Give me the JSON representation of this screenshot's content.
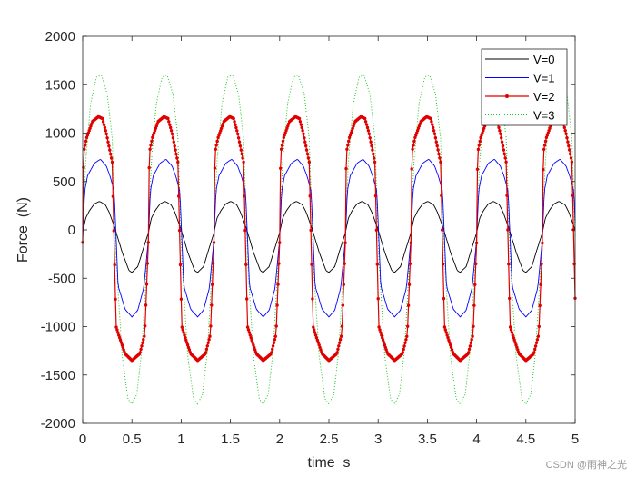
{
  "chart_data": {
    "type": "line",
    "xlabel": "time  s",
    "ylabel": "Force  (N)",
    "xlim": [
      0,
      5
    ],
    "ylim": [
      -2000,
      2000
    ],
    "xticks": [
      "0",
      "0.5",
      "1",
      "1.5",
      "2",
      "2.5",
      "3",
      "3.5",
      "4",
      "4.5",
      "5"
    ],
    "yticks": [
      "2000",
      "1500",
      "1000",
      "500",
      "0",
      "-500",
      "-1000",
      "-1500",
      "-2000"
    ],
    "grid": false,
    "legend_position": "top-right",
    "period_s": 0.6667,
    "series": [
      {
        "name": "V=0",
        "color": "#000000",
        "style": "solid",
        "x": [
          0,
          0.03,
          0.07,
          0.12,
          0.17,
          0.23,
          0.27,
          0.33,
          0.4,
          0.47,
          0.5,
          0.56,
          0.62,
          0.6667
        ],
        "values": [
          -30,
          120,
          200,
          270,
          295,
          260,
          180,
          10,
          -230,
          -420,
          -440,
          -380,
          -180,
          -30
        ]
      },
      {
        "name": "V=1",
        "color": "#0000ff",
        "style": "solid",
        "x": [
          0,
          0.02,
          0.05,
          0.12,
          0.18,
          0.24,
          0.28,
          0.32,
          0.36,
          0.43,
          0.5,
          0.56,
          0.62,
          0.6667
        ],
        "values": [
          -100,
          400,
          560,
          690,
          730,
          660,
          550,
          400,
          -580,
          -820,
          -900,
          -830,
          -600,
          -100
        ]
      },
      {
        "name": "V=2",
        "color": "#e00000",
        "style": "dots",
        "x": [
          0,
          0.01,
          0.04,
          0.1,
          0.16,
          0.2,
          0.24,
          0.3,
          0.34,
          0.37,
          0.43,
          0.5,
          0.58,
          0.63,
          0.6667
        ],
        "values": [
          -130,
          800,
          950,
          1120,
          1170,
          1150,
          1000,
          700,
          -1000,
          -1100,
          -1280,
          -1350,
          -1280,
          -1080,
          -130
        ]
      },
      {
        "name": "V=3",
        "color": "#22c422",
        "style": "dotted",
        "x": [
          0,
          0.03,
          0.08,
          0.14,
          0.19,
          0.25,
          0.3,
          0.34,
          0.4,
          0.46,
          0.5,
          0.55,
          0.6,
          0.6667
        ],
        "values": [
          -50,
          700,
          1300,
          1580,
          1600,
          1400,
          950,
          -300,
          -1300,
          -1750,
          -1800,
          -1700,
          -1250,
          -50
        ]
      }
    ]
  },
  "watermark": "CSDN @雨神之光"
}
